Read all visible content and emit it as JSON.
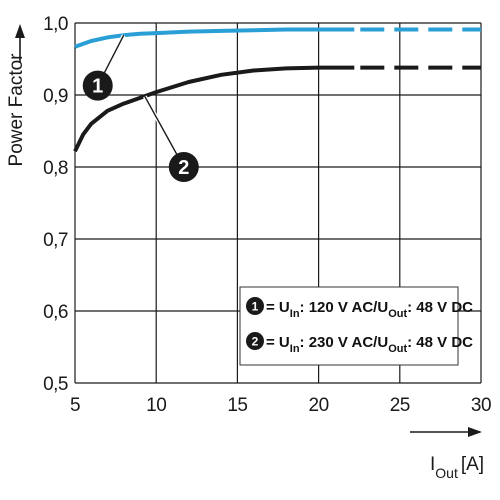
{
  "chart_data": {
    "type": "line",
    "ylabel": "Power Factor",
    "xlabel_main": "I",
    "xlabel_sub": "Out",
    "xlabel_unit": "[A]",
    "xlim": [
      5,
      30
    ],
    "ylim": [
      0.5,
      1.0
    ],
    "x_ticks": [
      "5",
      "10",
      "15",
      "20",
      "25",
      "30"
    ],
    "y_ticks": [
      "0,5",
      "0,6",
      "0,7",
      "0,8",
      "0,9",
      "1,0"
    ],
    "grid": true,
    "series": [
      {
        "marker": "1",
        "color": "#2a9fd6",
        "solid": {
          "x": [
            5,
            6,
            7,
            8,
            9,
            10,
            12,
            14,
            16,
            18,
            20,
            22.2
          ],
          "y": [
            0.967,
            0.975,
            0.98,
            0.983,
            0.985,
            0.986,
            0.988,
            0.989,
            0.99,
            0.991,
            0.991,
            0.991
          ]
        },
        "dashed": {
          "x": [
            22.2,
            30
          ],
          "y": [
            0.991,
            0.991
          ]
        }
      },
      {
        "marker": "2",
        "color": "#1a1a1a",
        "solid": {
          "x": [
            5,
            5.5,
            6,
            7,
            8,
            9,
            10,
            12,
            14,
            16,
            18,
            20,
            22.2
          ],
          "y": [
            0.822,
            0.845,
            0.86,
            0.878,
            0.888,
            0.896,
            0.904,
            0.918,
            0.928,
            0.934,
            0.937,
            0.938,
            0.938
          ]
        },
        "dashed": {
          "x": [
            22.2,
            30
          ],
          "y": [
            0.938,
            0.938
          ]
        }
      }
    ],
    "callouts": [
      {
        "label": "1",
        "at_x": 8.0,
        "at_y": 0.983,
        "badge_x": 6.4,
        "badge_y": 0.913
      },
      {
        "label": "2",
        "at_x": 9.3,
        "at_y": 0.898,
        "badge_x": 11.7,
        "badge_y": 0.8
      }
    ],
    "legend": {
      "placement": "lower-right",
      "entries": [
        {
          "marker": "1",
          "eq": "= U",
          "sub1": "In",
          "mid": ": 120 V AC/U",
          "sub2": "Out",
          "tail": ": 48 V DC"
        },
        {
          "marker": "2",
          "eq": "= U",
          "sub1": "In",
          "mid": ": 230 V AC/U",
          "sub2": "Out",
          "tail": ": 48 V DC"
        }
      ]
    }
  }
}
